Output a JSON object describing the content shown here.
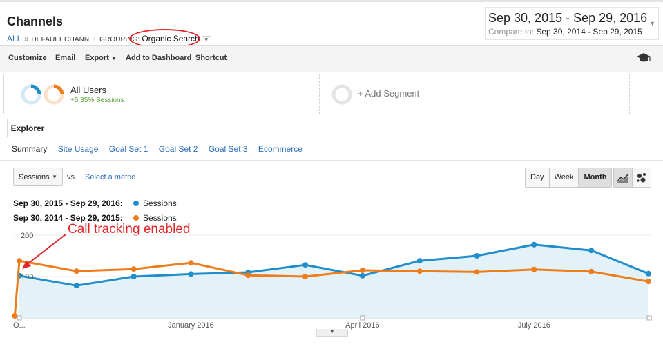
{
  "header": {
    "title": "Channels",
    "breadcrumb_all": "ALL",
    "breadcrumb_sep": "»",
    "breadcrumb_grouping": "DEFAULT CHANNEL GROUPING:",
    "breadcrumb_selected": "Organic Search"
  },
  "date_range": {
    "main": "Sep 30, 2015 - Sep 29, 2016",
    "compare_label": "Compare to:",
    "compare_range": "Sep 30, 2014 - Sep 29, 2015"
  },
  "toolbar": {
    "customize": "Customize",
    "email": "Email",
    "export": "Export",
    "add_to_dashboard": "Add to Dashboard",
    "shortcut": "Shortcut"
  },
  "segments": {
    "all_users_label": "All Users",
    "all_users_sub": "+5.35% Sessions",
    "add_segment": "+ Add Segment"
  },
  "explorer": {
    "tab": "Explorer",
    "subtabs": [
      "Summary",
      "Site Usage",
      "Goal Set 1",
      "Goal Set 2",
      "Goal Set 3",
      "Ecommerce"
    ]
  },
  "controls": {
    "metric": "Sessions",
    "vs": "vs.",
    "select_metric": "Select a metric",
    "granularity": [
      "Day",
      "Week",
      "Month"
    ],
    "granularity_selected": "Month"
  },
  "legend": [
    {
      "range": "Sep 30, 2015 - Sep 29, 2016:",
      "series": "Sessions",
      "color": "#1f8ecb"
    },
    {
      "range": "Sep 30, 2014 - Sep 29, 2015:",
      "series": "Sessions",
      "color": "#ee7c1b"
    }
  ],
  "annotation": {
    "text": "Call tracking enabled",
    "color": "#e0262a"
  },
  "chart_data": {
    "type": "line",
    "ylim": [
      0,
      200
    ],
    "yticks": [
      100,
      200
    ],
    "x_tick_labels": [
      "O...",
      "January 2016",
      "April 2016",
      "July 2016"
    ],
    "x_tick_index": [
      0,
      3.0,
      6.0,
      9.0
    ],
    "series": [
      {
        "name": "Sessions",
        "period": "Sep 30, 2015 - Sep 29, 2016",
        "color": "#1f8ecb",
        "x": [
          0,
          1,
          2,
          3,
          4,
          5,
          6,
          7,
          8,
          9,
          10,
          11
        ],
        "values": [
          102,
          78,
          100,
          106,
          110,
          128,
          102,
          138,
          150,
          177,
          163,
          107
        ],
        "fill": true
      },
      {
        "name": "Sessions",
        "period": "Sep 30, 2014 - Sep 29, 2015",
        "color": "#ee7c1b",
        "x": [
          -0.08,
          0,
          1,
          2,
          3,
          4,
          5,
          6,
          7,
          8,
          9,
          10,
          11
        ],
        "values": [
          5,
          138,
          113,
          118,
          133,
          103,
          100,
          115,
          113,
          111,
          117,
          112,
          88
        ],
        "fill": false
      }
    ]
  }
}
